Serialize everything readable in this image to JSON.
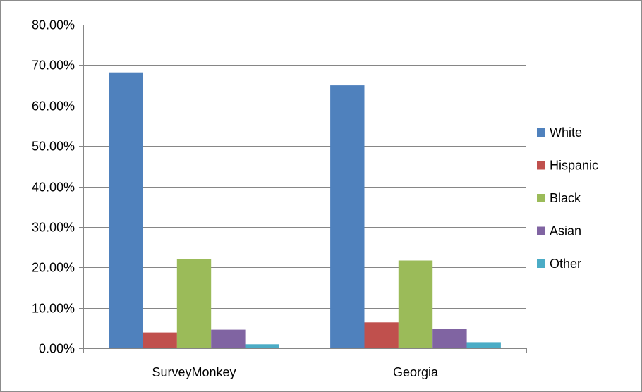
{
  "chart_data": {
    "type": "bar",
    "title": "",
    "xlabel": "",
    "ylabel": "",
    "categories": [
      "SurveyMonkey",
      "Georgia"
    ],
    "series": [
      {
        "name": "White",
        "values": [
          0.682,
          0.65
        ],
        "color": "#4F81BD"
      },
      {
        "name": "Hispanic",
        "values": [
          0.039,
          0.064
        ],
        "color": "#C0504D"
      },
      {
        "name": "Black",
        "values": [
          0.22,
          0.217
        ],
        "color": "#9BBB59"
      },
      {
        "name": "Asian",
        "values": [
          0.046,
          0.047
        ],
        "color": "#8064A2"
      },
      {
        "name": "Other",
        "values": [
          0.01,
          0.015
        ],
        "color": "#4BACC6"
      }
    ],
    "ylim": [
      0,
      0.8
    ],
    "yticks": [
      0,
      0.1,
      0.2,
      0.3,
      0.4,
      0.5,
      0.6,
      0.7,
      0.8
    ],
    "ytick_labels": [
      "0.00%",
      "10.00%",
      "20.00%",
      "30.00%",
      "40.00%",
      "50.00%",
      "60.00%",
      "70.00%",
      "80.00%"
    ],
    "grid": true,
    "legend_position": "right",
    "colors": {
      "gridline": "#868686",
      "axis": "#868686",
      "frame": "#8c8c8c"
    }
  }
}
